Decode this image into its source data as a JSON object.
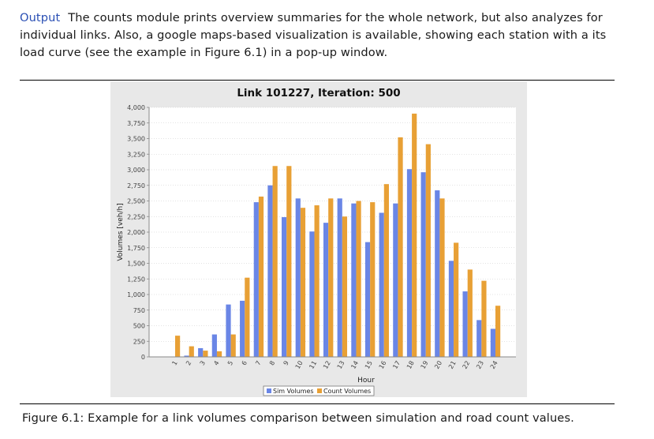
{
  "intro": {
    "keyword": "Output",
    "text": "The counts module prints overview summaries for the whole network, but also analyzes for individual links. Also, a google maps-based visualization is available, showing each station with a its load curve (see the example in Figure 6.1) in a pop-up window."
  },
  "caption": "Figure 6.1: Example for a link volumes comparison between simulation and road count values.",
  "colors": {
    "sim": "#6a86e6",
    "count": "#e8a035",
    "plot_bg": "#ffffff",
    "panel_bg": "#e8e8e8",
    "grid": "#c8c8c8"
  },
  "chart_data": {
    "type": "bar",
    "title": "Link 101227, Iteration: 500",
    "xlabel": "Hour",
    "ylabel": "Volumes [veh/h]",
    "categories": [
      "1",
      "2",
      "3",
      "4",
      "5",
      "6",
      "7",
      "8",
      "9",
      "10",
      "11",
      "12",
      "13",
      "14",
      "15",
      "16",
      "17",
      "18",
      "19",
      "20",
      "21",
      "22",
      "23",
      "24"
    ],
    "ylim": [
      0,
      4000
    ],
    "yticks": [
      "0",
      "250",
      "500",
      "750",
      "1,000",
      "1,250",
      "1,500",
      "1,750",
      "2,000",
      "2,250",
      "2,500",
      "2,750",
      "3,000",
      "3,250",
      "3,500",
      "3,750",
      "4,000"
    ],
    "grid": true,
    "legend_position": "bottom",
    "series": [
      {
        "name": "Sim Volumes",
        "color": "#6a86e6",
        "values": [
          0,
          20,
          140,
          360,
          840,
          900,
          2480,
          2750,
          2240,
          2540,
          2010,
          2150,
          2540,
          2460,
          1840,
          2310,
          2460,
          3010,
          2960,
          2670,
          1540,
          1050,
          590,
          450
        ]
      },
      {
        "name": "Count Volumes",
        "color": "#e8a035",
        "values": [
          340,
          170,
          100,
          90,
          360,
          1270,
          2570,
          3060,
          3060,
          2390,
          2430,
          2540,
          2250,
          2500,
          2480,
          2770,
          3520,
          3900,
          3410,
          2540,
          1830,
          1400,
          1220,
          820
        ]
      }
    ]
  }
}
